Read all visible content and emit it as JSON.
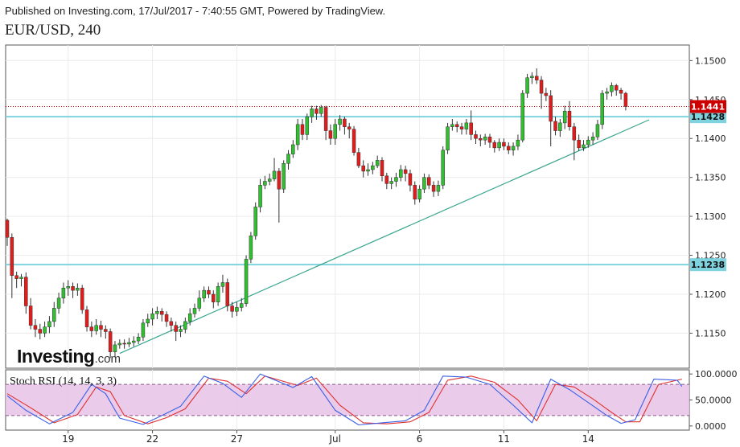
{
  "header": {
    "published": "Published on Investing.com, 17/Jul/2017 - 7:40:55 GMT, Powered by TradingView.",
    "symbol": "EUR/USD, 240"
  },
  "logo": {
    "brand": "Investing",
    "tld": ".com"
  },
  "chart_data": {
    "type": "candlestick",
    "instrument": "EUR/USD",
    "timeframe": "240",
    "price_axis": {
      "range": [
        1.1105,
        1.152
      ],
      "ticks": [
        "1.1500",
        "1.1450",
        "1.1400",
        "1.1350",
        "1.1300",
        "1.1250",
        "1.1200",
        "1.1150"
      ],
      "tick_values": [
        1.15,
        1.145,
        1.14,
        1.135,
        1.13,
        1.125,
        1.12,
        1.115
      ]
    },
    "time_axis": {
      "labels": [
        {
          "text": "19",
          "bar": 13
        },
        {
          "text": "22",
          "bar": 31
        },
        {
          "text": "27",
          "bar": 49
        },
        {
          "text": "Jul",
          "bar": 70
        },
        {
          "text": "6",
          "bar": 88
        },
        {
          "text": "11",
          "bar": 106
        },
        {
          "text": "14",
          "bar": 124
        }
      ]
    },
    "colors": {
      "up": "#2fbf2f",
      "down": "#e21b1b",
      "wick": "#333333",
      "level": "#7fd3de",
      "trendline": "#3aa68e",
      "current": "#cc0000"
    },
    "levels": [
      {
        "label": "1.1428",
        "value": 1.1428
      },
      {
        "label": "1.1238",
        "value": 1.1238
      }
    ],
    "current_price": {
      "label": "1.1441",
      "value": 1.1441
    },
    "trendline": {
      "start": {
        "bar": 24,
        "price": 1.1124
      },
      "end": {
        "bar": 137,
        "price": 1.1424
      }
    },
    "candles": [
      [
        1.1295,
        1.1273,
        1.1297,
        1.1262
      ],
      [
        1.1273,
        1.1224,
        1.1278,
        1.1195
      ],
      [
        1.1224,
        1.122,
        1.1229,
        1.1208
      ],
      [
        1.122,
        1.1222,
        1.1226,
        1.121
      ],
      [
        1.1222,
        1.1185,
        1.1228,
        1.1175
      ],
      [
        1.1185,
        1.116,
        1.1195,
        1.1155
      ],
      [
        1.116,
        1.1155,
        1.1168,
        1.1145
      ],
      [
        1.1155,
        1.115,
        1.1162,
        1.1142
      ],
      [
        1.115,
        1.1158,
        1.1165,
        1.1145
      ],
      [
        1.1158,
        1.1165,
        1.1172,
        1.115
      ],
      [
        1.1165,
        1.1182,
        1.119,
        1.1158
      ],
      [
        1.1182,
        1.1195,
        1.1202,
        1.1175
      ],
      [
        1.1195,
        1.1208,
        1.1215,
        1.1188
      ],
      [
        1.1208,
        1.121,
        1.1218,
        1.1198
      ],
      [
        1.121,
        1.1205,
        1.1215,
        1.1195
      ],
      [
        1.1205,
        1.1208,
        1.1214,
        1.1198
      ],
      [
        1.1208,
        1.118,
        1.1212,
        1.1175
      ],
      [
        1.118,
        1.1158,
        1.1185,
        1.1152
      ],
      [
        1.1158,
        1.1153,
        1.1165,
        1.1145
      ],
      [
        1.1153,
        1.116,
        1.1168,
        1.1148
      ],
      [
        1.116,
        1.1155,
        1.1166,
        1.1145
      ],
      [
        1.1155,
        1.1152,
        1.116,
        1.1143
      ],
      [
        1.1152,
        1.1126,
        1.1156,
        1.1118
      ],
      [
        1.1126,
        1.1135,
        1.114,
        1.112
      ],
      [
        1.1135,
        1.1137,
        1.1142,
        1.113
      ],
      [
        1.1137,
        1.1136,
        1.1142,
        1.113
      ],
      [
        1.1136,
        1.1138,
        1.1144,
        1.1132
      ],
      [
        1.1138,
        1.114,
        1.1146,
        1.1133
      ],
      [
        1.114,
        1.1145,
        1.115,
        1.1136
      ],
      [
        1.1145,
        1.1163,
        1.1168,
        1.114
      ],
      [
        1.1163,
        1.1168,
        1.1175,
        1.1158
      ],
      [
        1.1168,
        1.1175,
        1.1182,
        1.116
      ],
      [
        1.1175,
        1.1178,
        1.1184,
        1.1168
      ],
      [
        1.1178,
        1.1174,
        1.1182,
        1.1165
      ],
      [
        1.1174,
        1.1165,
        1.1178,
        1.1158
      ],
      [
        1.1165,
        1.116,
        1.117,
        1.1152
      ],
      [
        1.116,
        1.1152,
        1.1165,
        1.114
      ],
      [
        1.1152,
        1.1155,
        1.116,
        1.1145
      ],
      [
        1.1155,
        1.1165,
        1.117,
        1.115
      ],
      [
        1.1165,
        1.1175,
        1.1182,
        1.116
      ],
      [
        1.1175,
        1.1182,
        1.1188,
        1.117
      ],
      [
        1.1182,
        1.1195,
        1.1205,
        1.1178
      ],
      [
        1.1195,
        1.1205,
        1.121,
        1.119
      ],
      [
        1.1205,
        1.12,
        1.121,
        1.1195
      ],
      [
        1.12,
        1.119,
        1.1205,
        1.1182
      ],
      [
        1.119,
        1.121,
        1.1215,
        1.1185
      ],
      [
        1.121,
        1.1215,
        1.1225,
        1.1202
      ],
      [
        1.1215,
        1.1185,
        1.122,
        1.1178
      ],
      [
        1.1185,
        1.1178,
        1.119,
        1.117
      ],
      [
        1.1178,
        1.1183,
        1.119,
        1.1172
      ],
      [
        1.1183,
        1.1188,
        1.1195,
        1.1178
      ],
      [
        1.1188,
        1.1245,
        1.125,
        1.1184
      ],
      [
        1.1245,
        1.1275,
        1.128,
        1.124
      ],
      [
        1.1275,
        1.1312,
        1.1318,
        1.127
      ],
      [
        1.1312,
        1.134,
        1.1348,
        1.1305
      ],
      [
        1.134,
        1.1345,
        1.1352,
        1.1335
      ],
      [
        1.1345,
        1.1348,
        1.1355,
        1.134
      ],
      [
        1.1348,
        1.1358,
        1.1375,
        1.1345
      ],
      [
        1.1358,
        1.1335,
        1.1362,
        1.1292
      ],
      [
        1.1335,
        1.1368,
        1.1372,
        1.133
      ],
      [
        1.1368,
        1.138,
        1.1385,
        1.136
      ],
      [
        1.138,
        1.1392,
        1.1398,
        1.1375
      ],
      [
        1.1392,
        1.1418,
        1.1425,
        1.1385
      ],
      [
        1.1418,
        1.1405,
        1.1425,
        1.1398
      ],
      [
        1.1405,
        1.1428,
        1.1432,
        1.1398
      ],
      [
        1.1428,
        1.1438,
        1.1442,
        1.142
      ],
      [
        1.1438,
        1.1432,
        1.1442,
        1.1424
      ],
      [
        1.1432,
        1.144,
        1.1443,
        1.1428
      ],
      [
        1.144,
        1.141,
        1.1442,
        1.1398
      ],
      [
        1.141,
        1.14,
        1.1418,
        1.1392
      ],
      [
        1.14,
        1.1418,
        1.1425,
        1.1392
      ],
      [
        1.1418,
        1.1425,
        1.143,
        1.141
      ],
      [
        1.1425,
        1.1415,
        1.1428,
        1.1405
      ],
      [
        1.1415,
        1.1412,
        1.142,
        1.14
      ],
      [
        1.1412,
        1.1382,
        1.1416,
        1.1378
      ],
      [
        1.1382,
        1.1365,
        1.1388,
        1.1362
      ],
      [
        1.1365,
        1.1358,
        1.1372,
        1.135
      ],
      [
        1.1358,
        1.136,
        1.1368,
        1.1352
      ],
      [
        1.136,
        1.1365,
        1.137,
        1.1354
      ],
      [
        1.1365,
        1.1372,
        1.1378,
        1.1362
      ],
      [
        1.1372,
        1.1352,
        1.1376,
        1.1345
      ],
      [
        1.1352,
        1.1342,
        1.1356,
        1.1335
      ],
      [
        1.1342,
        1.1345,
        1.135,
        1.1335
      ],
      [
        1.1345,
        1.135,
        1.1356,
        1.1338
      ],
      [
        1.135,
        1.136,
        1.1366,
        1.1345
      ],
      [
        1.136,
        1.1355,
        1.1365,
        1.1345
      ],
      [
        1.1355,
        1.134,
        1.136,
        1.1332
      ],
      [
        1.134,
        1.1322,
        1.1345,
        1.1315
      ],
      [
        1.1322,
        1.1335,
        1.134,
        1.1318
      ],
      [
        1.1335,
        1.135,
        1.1355,
        1.133
      ],
      [
        1.135,
        1.134,
        1.1354,
        1.1335
      ],
      [
        1.134,
        1.1332,
        1.1345,
        1.1325
      ],
      [
        1.1332,
        1.134,
        1.1346,
        1.1326
      ],
      [
        1.134,
        1.1385,
        1.139,
        1.1335
      ],
      [
        1.1385,
        1.1415,
        1.142,
        1.138
      ],
      [
        1.1415,
        1.1418,
        1.1425,
        1.141
      ],
      [
        1.1418,
        1.1415,
        1.1422,
        1.1408
      ],
      [
        1.1415,
        1.1412,
        1.142,
        1.1405
      ],
      [
        1.1412,
        1.142,
        1.1425,
        1.1405
      ],
      [
        1.142,
        1.1405,
        1.1436,
        1.1398
      ],
      [
        1.1405,
        1.14,
        1.141,
        1.1393
      ],
      [
        1.14,
        1.1398,
        1.1405,
        1.139
      ],
      [
        1.1398,
        1.1402,
        1.1406,
        1.1392
      ],
      [
        1.1402,
        1.1395,
        1.1406,
        1.1388
      ],
      [
        1.1395,
        1.1388,
        1.1398,
        1.1382
      ],
      [
        1.1388,
        1.1395,
        1.14,
        1.1384
      ],
      [
        1.1395,
        1.139,
        1.14,
        1.1385
      ],
      [
        1.139,
        1.1385,
        1.1395,
        1.138
      ],
      [
        1.1385,
        1.139,
        1.1395,
        1.1378
      ],
      [
        1.139,
        1.1398,
        1.1405,
        1.1385
      ],
      [
        1.1398,
        1.1458,
        1.1462,
        1.1395
      ],
      [
        1.1458,
        1.1478,
        1.1483,
        1.1452
      ],
      [
        1.1478,
        1.148,
        1.1485,
        1.147
      ],
      [
        1.148,
        1.1475,
        1.149,
        1.147
      ],
      [
        1.1475,
        1.1458,
        1.148,
        1.1438
      ],
      [
        1.1458,
        1.1455,
        1.1465,
        1.1448
      ],
      [
        1.1455,
        1.1422,
        1.1462,
        1.139
      ],
      [
        1.1422,
        1.141,
        1.1428,
        1.1404
      ],
      [
        1.141,
        1.142,
        1.1425,
        1.1402
      ],
      [
        1.142,
        1.1435,
        1.1442,
        1.1412
      ],
      [
        1.1435,
        1.1415,
        1.1448,
        1.141
      ],
      [
        1.1415,
        1.1398,
        1.142,
        1.1372
      ],
      [
        1.1398,
        1.1388,
        1.1405,
        1.1384
      ],
      [
        1.1388,
        1.1392,
        1.1398,
        1.1384
      ],
      [
        1.1392,
        1.1398,
        1.1403,
        1.1388
      ],
      [
        1.1398,
        1.1402,
        1.1408,
        1.1392
      ],
      [
        1.1402,
        1.1418,
        1.1424,
        1.1398
      ],
      [
        1.1418,
        1.1458,
        1.1462,
        1.1412
      ],
      [
        1.1458,
        1.146,
        1.1465,
        1.145
      ],
      [
        1.146,
        1.1468,
        1.1472,
        1.1454
      ],
      [
        1.1468,
        1.1462,
        1.147,
        1.1455
      ],
      [
        1.1462,
        1.1458,
        1.1465,
        1.145
      ],
      [
        1.1458,
        1.1441,
        1.146,
        1.1436
      ]
    ],
    "stoch_rsi": {
      "label": "Stoch RSI (14, 14, 3, 3)",
      "range": [
        -8,
        108
      ],
      "ticks": [
        "100.0000",
        "50.0000",
        "0.0000"
      ],
      "tick_values": [
        100,
        50,
        0
      ],
      "band": [
        20,
        80
      ],
      "colors": {
        "k": "#3a5fe6",
        "d": "#e03030",
        "band": "#e6c3e6"
      },
      "k": [
        [
          0,
          58
        ],
        [
          4,
          30
        ],
        [
          9,
          4
        ],
        [
          14,
          26
        ],
        [
          18,
          80
        ],
        [
          21,
          62
        ],
        [
          24,
          15
        ],
        [
          29,
          3
        ],
        [
          33,
          20
        ],
        [
          37,
          38
        ],
        [
          42,
          96
        ],
        [
          46,
          82
        ],
        [
          50,
          55
        ],
        [
          54,
          100
        ],
        [
          61,
          74
        ],
        [
          65,
          95
        ],
        [
          70,
          30
        ],
        [
          75,
          2
        ],
        [
          80,
          6
        ],
        [
          85,
          10
        ],
        [
          89,
          30
        ],
        [
          93,
          96
        ],
        [
          98,
          94
        ],
        [
          103,
          80
        ],
        [
          108,
          40
        ],
        [
          112,
          6
        ],
        [
          116,
          90
        ],
        [
          120,
          70
        ],
        [
          124,
          45
        ],
        [
          128,
          20
        ],
        [
          131,
          5
        ],
        [
          134,
          12
        ],
        [
          138,
          90
        ],
        [
          143,
          88
        ],
        [
          144,
          76
        ]
      ],
      "d": [
        [
          0,
          62
        ],
        [
          5,
          35
        ],
        [
          10,
          6
        ],
        [
          15,
          22
        ],
        [
          19,
          75
        ],
        [
          22,
          66
        ],
        [
          25,
          20
        ],
        [
          30,
          4
        ],
        [
          34,
          16
        ],
        [
          38,
          33
        ],
        [
          43,
          92
        ],
        [
          47,
          86
        ],
        [
          51,
          62
        ],
        [
          55,
          96
        ],
        [
          62,
          78
        ],
        [
          66,
          92
        ],
        [
          71,
          40
        ],
        [
          76,
          6
        ],
        [
          81,
          4
        ],
        [
          86,
          8
        ],
        [
          90,
          26
        ],
        [
          94,
          88
        ],
        [
          99,
          96
        ],
        [
          104,
          84
        ],
        [
          109,
          50
        ],
        [
          113,
          10
        ],
        [
          117,
          80
        ],
        [
          121,
          75
        ],
        [
          125,
          52
        ],
        [
          129,
          26
        ],
        [
          132,
          8
        ],
        [
          135,
          8
        ],
        [
          139,
          80
        ],
        [
          144,
          90
        ]
      ]
    }
  }
}
